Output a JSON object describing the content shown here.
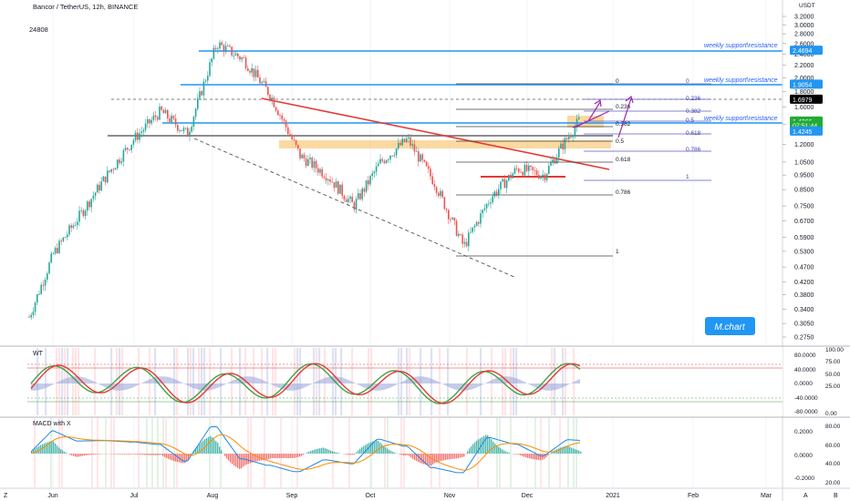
{
  "header": {
    "symbol": "Bancor / TetherUS, 12h, BINANCE",
    "volume_label": "24808"
  },
  "price_axis": {
    "labels": [
      "3.2000",
      "3.0000",
      "2.8000",
      "2.6000",
      "2.4000",
      "2.2000",
      "2.0000",
      "1.8000",
      "1.6000",
      "1.4000",
      "1.2000",
      "1.0500",
      "0.9500",
      "0.8500",
      "0.7500",
      "0.6700",
      "0.5900",
      "0.5300",
      "0.4700",
      "0.4200",
      "0.3800",
      "0.3400",
      "0.3050",
      "0.2750"
    ],
    "currency_top": "USDT",
    "tags": [
      {
        "text": "2.4694",
        "color": "#2196f3",
        "price": 2.4694
      },
      {
        "text": "1.9054",
        "color": "#2196f3",
        "price": 1.9054
      },
      {
        "text": "1.6979",
        "color": "#000000",
        "price": 1.6979
      },
      {
        "text": "1.4366",
        "color": "#22ab37",
        "price": 1.4366
      },
      {
        "text": "07:51:44",
        "color": "#22ab37",
        "price": 1.39
      },
      {
        "text": "1.4245",
        "color": "#2196f3",
        "price": 1.33
      }
    ]
  },
  "time_axis": {
    "labels": [
      "Jun",
      "Jul",
      "Aug",
      "Sep",
      "Oct",
      "Nov",
      "Dec",
      "2021",
      "Feb",
      "Mar"
    ]
  },
  "annotations": {
    "support_label": "weekly support\\resistance",
    "watermark": "M.chart"
  },
  "fib_left": [
    "0",
    "0.236",
    "0.382",
    "0.5",
    "0.618",
    "0.786",
    "1"
  ],
  "fib_right": [
    "0",
    "0.236",
    "0.382",
    "0.5",
    "0.618",
    "0.786",
    "1"
  ],
  "wt_panel": {
    "title": "WT",
    "axis_left": [
      "80.0000",
      "40.0000",
      "0.0000",
      "-40.0000",
      "-80.0000"
    ],
    "axis_right": [
      "100.00",
      "75.00",
      "50.00",
      "25.00",
      "0.00"
    ]
  },
  "macd_panel": {
    "title": "MACD with X",
    "axis_left": [
      "0.2000",
      "0.0000",
      "-0.2000"
    ],
    "axis_right": [
      "80.00",
      "60.00",
      "40.00",
      "20.00"
    ]
  },
  "bottom_bar": {
    "left": "Z",
    "right_a": "A",
    "right_b": "B"
  },
  "colors": {
    "support": "#2196f3",
    "trend": "#e53935",
    "zone": "#f5b041",
    "bull": "#26a69a",
    "bear": "#ef5350"
  },
  "chart_data": {
    "type": "candlestick",
    "title": "Bancor / TetherUS, 12h, BINANCE",
    "x_range": [
      "2020-05-25",
      "2021-03-25"
    ],
    "y_range": [
      0.26,
      3.4
    ],
    "y_scale": "log",
    "levels": [
      {
        "label": "weekly support\\resistance",
        "price": 2.4694
      },
      {
        "label": "weekly support\\resistance",
        "price": 1.9054
      },
      {
        "label": "weekly support\\resistance",
        "price": 1.4245
      }
    ],
    "series_approx_close": [
      {
        "date": "2020-05-27",
        "value": 0.32
      },
      {
        "date": "2020-06-05",
        "value": 0.52
      },
      {
        "date": "2020-06-15",
        "value": 0.7
      },
      {
        "date": "2020-06-25",
        "value": 0.95
      },
      {
        "date": "2020-07-05",
        "value": 1.25
      },
      {
        "date": "2020-07-15",
        "value": 1.55
      },
      {
        "date": "2020-07-25",
        "value": 1.3
      },
      {
        "date": "2020-08-05",
        "value": 2.6
      },
      {
        "date": "2020-08-15",
        "value": 2.3
      },
      {
        "date": "2020-08-25",
        "value": 1.75
      },
      {
        "date": "2020-09-05",
        "value": 1.1
      },
      {
        "date": "2020-09-15",
        "value": 0.95
      },
      {
        "date": "2020-09-25",
        "value": 0.75
      },
      {
        "date": "2020-10-05",
        "value": 1.05
      },
      {
        "date": "2020-10-15",
        "value": 1.25
      },
      {
        "date": "2020-10-25",
        "value": 0.9
      },
      {
        "date": "2020-11-05",
        "value": 0.55
      },
      {
        "date": "2020-11-15",
        "value": 0.8
      },
      {
        "date": "2020-11-25",
        "value": 1.0
      },
      {
        "date": "2020-12-05",
        "value": 0.95
      },
      {
        "date": "2020-12-12",
        "value": 1.2
      },
      {
        "date": "2020-12-18",
        "value": 1.44
      }
    ]
  }
}
